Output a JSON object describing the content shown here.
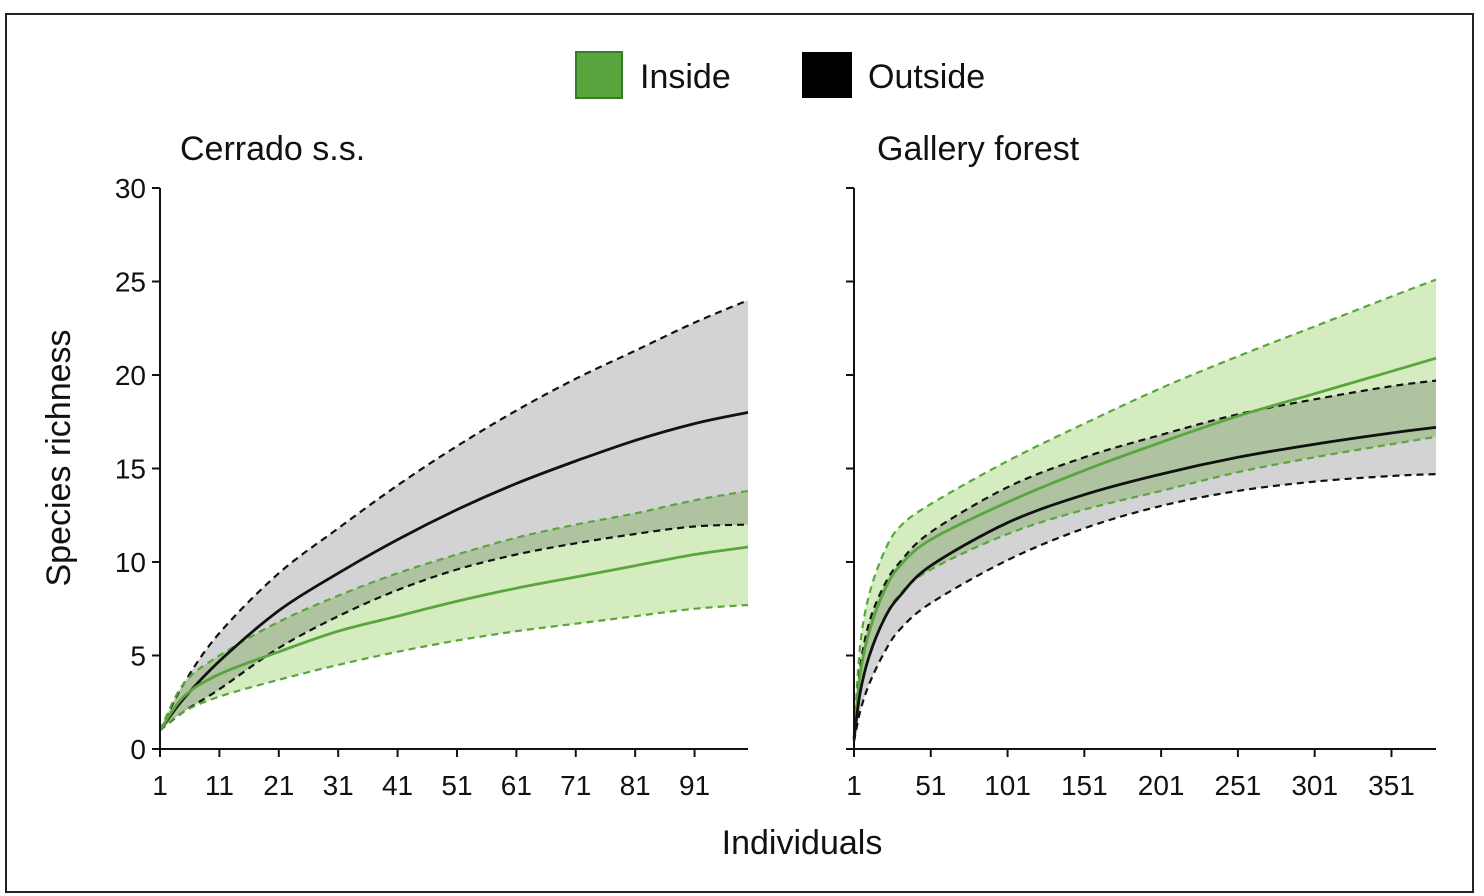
{
  "legend": {
    "items": [
      {
        "label": "Inside",
        "color": "#5aa63e"
      },
      {
        "label": "Outside",
        "color": "#000000"
      }
    ]
  },
  "axis": {
    "ylabel": "Species richness",
    "xlabel": "Individuals"
  },
  "colors": {
    "inside_line": "#5aa63e",
    "inside_band": "#d4ecc0",
    "outside_line": "#111111",
    "outside_band": "#d3d3d6",
    "overlap_band": "#b7c7ad"
  },
  "chart_data": [
    {
      "type": "line",
      "title": "Cerrado s.s.",
      "xlim": [
        1,
        100
      ],
      "ylim": [
        0,
        30
      ],
      "x_ticks": [
        1,
        11,
        21,
        31,
        41,
        51,
        61,
        71,
        81,
        91
      ],
      "y_ticks": [
        0,
        5,
        10,
        15,
        20,
        25,
        30
      ],
      "series": [
        {
          "name": "Outside",
          "x": [
            1,
            5,
            11,
            21,
            31,
            41,
            51,
            61,
            71,
            81,
            91,
            100
          ],
          "y": [
            1.0,
            2.7,
            4.7,
            7.4,
            9.4,
            11.2,
            12.8,
            14.2,
            15.4,
            16.5,
            17.4,
            18.0
          ],
          "lower": [
            1.0,
            2.0,
            3.2,
            5.4,
            7.1,
            8.5,
            9.6,
            10.4,
            11.0,
            11.5,
            11.9,
            12.0
          ],
          "upper": [
            1.0,
            3.5,
            6.2,
            9.4,
            11.8,
            14.1,
            16.2,
            18.1,
            19.8,
            21.3,
            22.8,
            24.0
          ]
        },
        {
          "name": "Inside",
          "x": [
            1,
            5,
            11,
            21,
            31,
            41,
            51,
            61,
            71,
            81,
            91,
            100
          ],
          "y": [
            1.0,
            2.8,
            4.0,
            5.2,
            6.3,
            7.1,
            7.9,
            8.6,
            9.2,
            9.8,
            10.4,
            10.8
          ],
          "lower": [
            1.0,
            2.0,
            2.8,
            3.7,
            4.5,
            5.2,
            5.8,
            6.3,
            6.7,
            7.1,
            7.5,
            7.7
          ],
          "upper": [
            1.0,
            3.5,
            5.0,
            6.8,
            8.2,
            9.4,
            10.4,
            11.3,
            12.0,
            12.6,
            13.3,
            13.8
          ]
        }
      ]
    },
    {
      "type": "line",
      "title": "Gallery forest",
      "xlim": [
        1,
        380
      ],
      "ylim": [
        0,
        30
      ],
      "x_ticks": [
        1,
        51,
        101,
        151,
        201,
        251,
        301,
        351
      ],
      "y_ticks": [
        0,
        5,
        10,
        15,
        20,
        25,
        30
      ],
      "series": [
        {
          "name": "Inside",
          "x": [
            1,
            5,
            11,
            21,
            31,
            51,
            101,
            151,
            201,
            251,
            301,
            351,
            380
          ],
          "y": [
            0.6,
            4.0,
            6.3,
            8.5,
            9.8,
            11.2,
            13.2,
            14.9,
            16.4,
            17.8,
            19.0,
            20.2,
            20.9
          ],
          "lower": [
            0.5,
            3.0,
            5.0,
            7.0,
            8.3,
            9.6,
            11.5,
            12.8,
            13.8,
            14.8,
            15.6,
            16.3,
            16.7
          ],
          "upper": [
            0.7,
            5.5,
            8.3,
            10.6,
            11.9,
            13.1,
            15.4,
            17.4,
            19.3,
            21.0,
            22.6,
            24.2,
            25.1
          ]
        },
        {
          "name": "Outside",
          "x": [
            1,
            5,
            11,
            21,
            31,
            51,
            101,
            151,
            201,
            251,
            301,
            351,
            380
          ],
          "y": [
            0.5,
            3.0,
            5.0,
            7.0,
            8.2,
            9.8,
            12.1,
            13.6,
            14.7,
            15.6,
            16.3,
            16.9,
            17.2
          ],
          "lower": [
            0.4,
            2.0,
            3.5,
            5.2,
            6.4,
            7.8,
            10.1,
            11.8,
            13.0,
            13.8,
            14.3,
            14.6,
            14.7
          ],
          "upper": [
            0.6,
            4.3,
            6.8,
            8.8,
            10.0,
            11.6,
            14.0,
            15.6,
            16.8,
            17.9,
            18.7,
            19.4,
            19.7
          ]
        }
      ]
    }
  ]
}
